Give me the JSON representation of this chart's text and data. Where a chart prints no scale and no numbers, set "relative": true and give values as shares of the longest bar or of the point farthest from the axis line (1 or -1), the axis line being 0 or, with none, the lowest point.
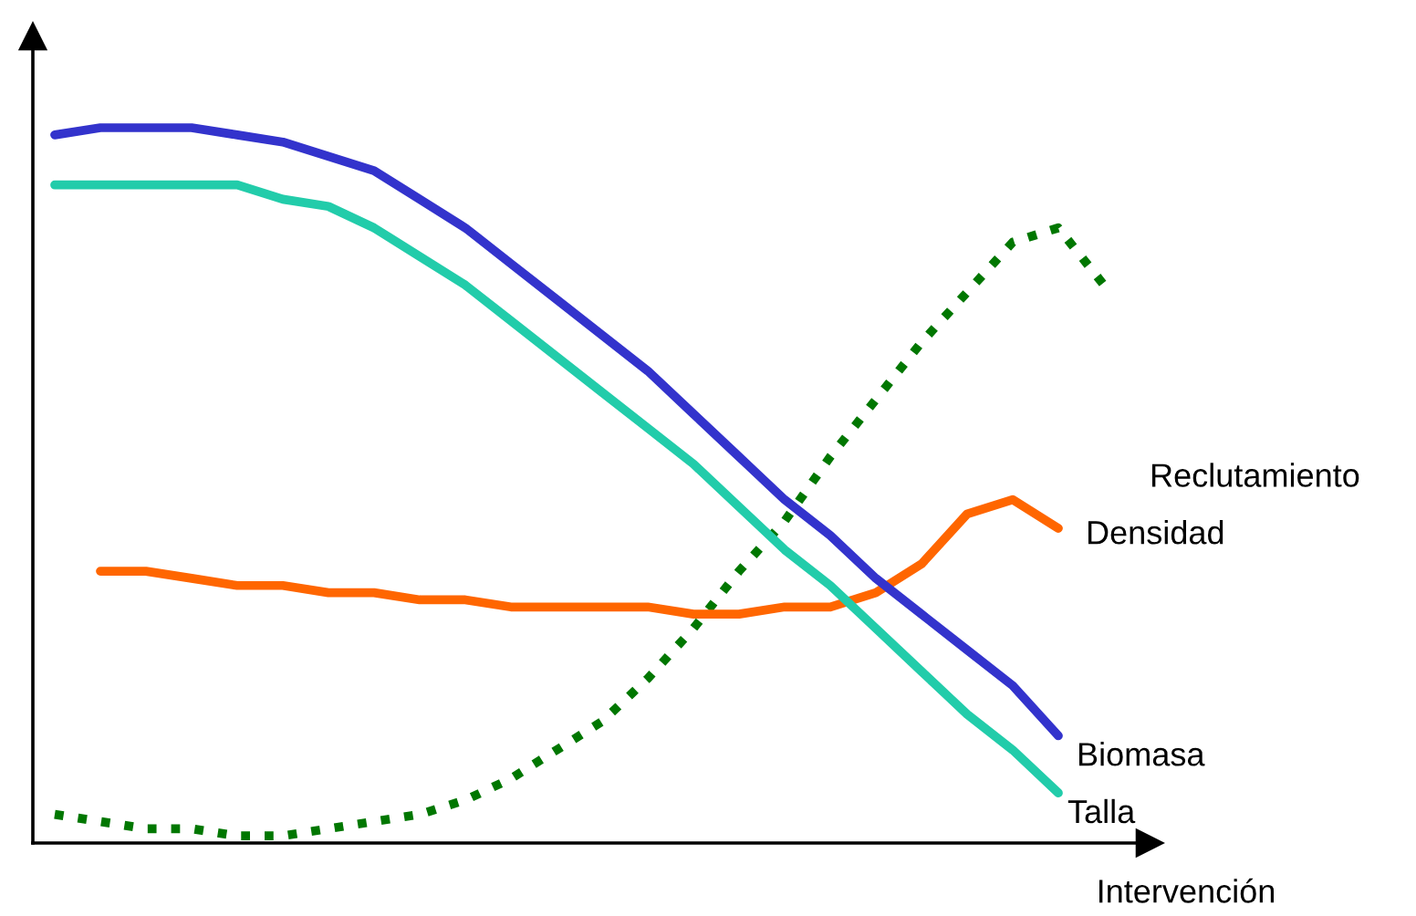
{
  "chart_data": {
    "type": "line",
    "relative": true,
    "xlabel": "Intervención",
    "grid": false,
    "legend": false,
    "categories": [
      null,
      null,
      null,
      null,
      null,
      null,
      null,
      null,
      null,
      null,
      null,
      null,
      null,
      null,
      null,
      null,
      null,
      null,
      null,
      null,
      null,
      null,
      null,
      null
    ],
    "series": [
      {
        "name": "Reclutamiento",
        "color": "#007700",
        "line_style": "dotted",
        "values": [
          0.04,
          0.03,
          0.02,
          0.02,
          0.01,
          0.01,
          0.02,
          0.03,
          0.04,
          0.06,
          0.09,
          0.13,
          0.17,
          0.23,
          0.3,
          0.38,
          0.45,
          0.54,
          0.62,
          0.7,
          0.77,
          0.84,
          0.86,
          0.78
        ]
      },
      {
        "name": "Densidad",
        "color": "#ff6600",
        "line_style": "solid",
        "values": [
          null,
          0.38,
          0.38,
          0.37,
          0.36,
          0.36,
          0.35,
          0.35,
          0.34,
          0.34,
          0.33,
          0.33,
          0.33,
          0.33,
          0.32,
          0.32,
          0.33,
          0.33,
          0.35,
          0.39,
          0.46,
          0.48,
          0.44,
          null
        ]
      },
      {
        "name": "Biomasa",
        "color": "#3333cc",
        "line_style": "solid",
        "values": [
          0.99,
          1.0,
          1.0,
          1.0,
          0.99,
          0.98,
          0.96,
          0.94,
          0.9,
          0.86,
          0.81,
          0.76,
          0.71,
          0.66,
          0.6,
          0.54,
          0.48,
          0.43,
          0.37,
          0.32,
          0.27,
          0.22,
          0.15,
          null
        ]
      },
      {
        "name": "Talla",
        "color": "#22ccaa",
        "line_style": "solid",
        "values": [
          0.92,
          0.92,
          0.92,
          0.92,
          0.92,
          0.9,
          0.89,
          0.86,
          0.82,
          0.78,
          0.73,
          0.68,
          0.63,
          0.58,
          0.53,
          0.47,
          0.41,
          0.36,
          0.3,
          0.24,
          0.18,
          0.13,
          0.07,
          null
        ]
      }
    ]
  }
}
